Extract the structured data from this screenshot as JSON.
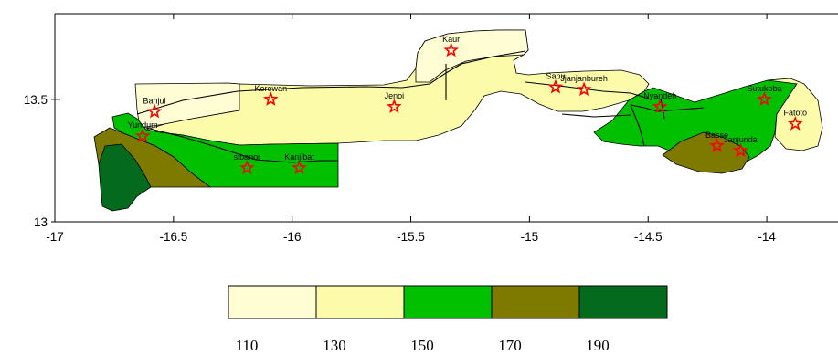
{
  "colors": {
    "c110": "#fffdd3",
    "c130": "#fbfbaa",
    "c150": "#00c000",
    "c170": "#7e7a00",
    "c190": "#046b1e",
    "star": "#ff0000",
    "frame": "#000000"
  },
  "axes": {
    "x_ticks": [
      "-17",
      "-16.5",
      "-16",
      "-15.5",
      "-15",
      "-14.5",
      "-14"
    ],
    "y_ticks": [
      "13.5",
      "13"
    ],
    "x_range": [
      -17,
      -13.7
    ],
    "y_range": [
      13,
      13.85
    ]
  },
  "stations": [
    {
      "name": "Kaur",
      "lon": -15.33,
      "lat": 13.7
    },
    {
      "name": "Kerewan",
      "lon": -16.09,
      "lat": 13.5
    },
    {
      "name": "Banjul",
      "lon": -16.58,
      "lat": 13.45
    },
    {
      "name": "Yundum",
      "lon": -16.63,
      "lat": 13.35
    },
    {
      "name": "Jenoi",
      "lon": -15.57,
      "lat": 13.47
    },
    {
      "name": "Sapu",
      "lon": -14.89,
      "lat": 13.55
    },
    {
      "name": "Jjanjanbureh",
      "lon": -14.77,
      "lat": 13.54
    },
    {
      "name": "Nyandeh",
      "lon": -14.45,
      "lat": 13.47
    },
    {
      "name": "Sutukoba",
      "lon": -14.01,
      "lat": 13.5
    },
    {
      "name": "Fatoto",
      "lon": -13.88,
      "lat": 13.4
    },
    {
      "name": "sibanor",
      "lon": -16.19,
      "lat": 13.22
    },
    {
      "name": "Kanjibat",
      "lon": -15.97,
      "lat": 13.22
    },
    {
      "name": "Basse",
      "lon": -14.21,
      "lat": 13.31
    },
    {
      "name": "Janjunda",
      "lon": -14.11,
      "lat": 13.29
    }
  ],
  "legend": {
    "labels": [
      "110",
      "130",
      "150",
      "170",
      "190"
    ]
  }
}
